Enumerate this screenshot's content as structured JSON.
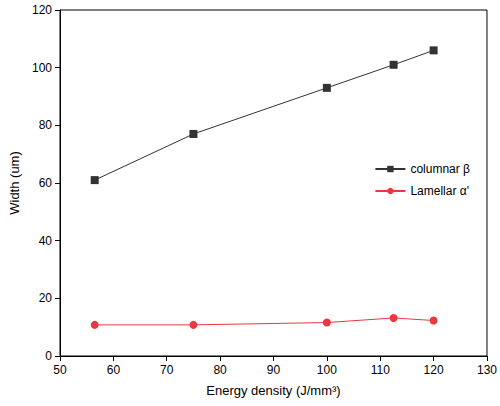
{
  "chart_data": {
    "type": "line",
    "x_label": "Energy density (J/mm³)",
    "y_label": "Width (um)",
    "xlim": [
      50,
      130
    ],
    "xticks": [
      50,
      60,
      70,
      80,
      90,
      100,
      110,
      120,
      130
    ],
    "ylim": [
      0,
      120
    ],
    "yticks": [
      0,
      20,
      40,
      60,
      80,
      100,
      120
    ],
    "grid": false,
    "legend": "right",
    "series": [
      {
        "name": "columnar β",
        "color": "#333333",
        "marker": "square",
        "line_style": "solid",
        "x": [
          56.5,
          75,
          100,
          112.5,
          120
        ],
        "values": [
          61,
          77,
          93,
          101,
          106
        ]
      },
      {
        "name": "Lamellar α'",
        "color": "#e8393f",
        "marker": "circle",
        "line_style": "solid",
        "x": [
          56.5,
          75,
          100,
          112.5,
          120
        ],
        "values": [
          10.8,
          10.8,
          11.6,
          13.2,
          12.3
        ]
      }
    ]
  }
}
